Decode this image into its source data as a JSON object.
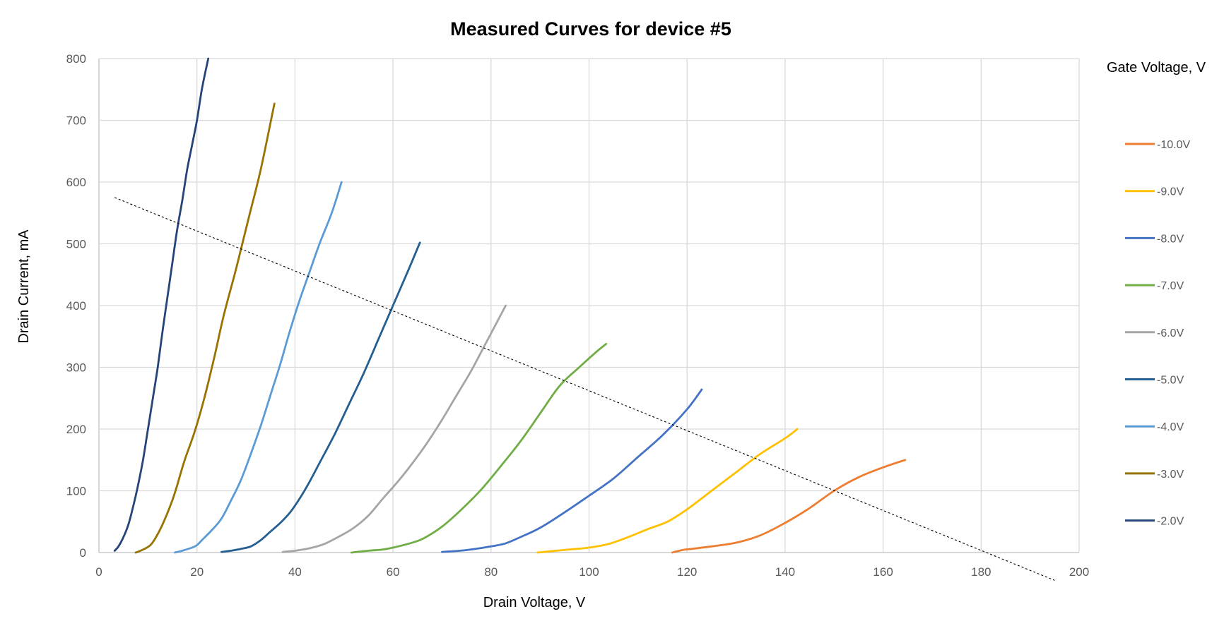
{
  "chart_data": {
    "type": "line",
    "title": "Measured Curves for device #5",
    "xlabel": "Drain Voltage, V",
    "ylabel": "Drain Current, mA",
    "xlim": [
      0,
      200
    ],
    "ylim": [
      0,
      800
    ],
    "xticks": [
      0,
      20,
      40,
      60,
      80,
      100,
      120,
      140,
      160,
      180,
      200
    ],
    "yticks": [
      0,
      100,
      200,
      300,
      400,
      500,
      600,
      700,
      800
    ],
    "grid": true,
    "legend_title": "Gate Voltage, V",
    "legend_position": "right",
    "series": [
      {
        "name": "-10.0V",
        "color": "#ed7d31",
        "points": [
          [
            117,
            0
          ],
          [
            119,
            4
          ],
          [
            121,
            6
          ],
          [
            125,
            10
          ],
          [
            130,
            16
          ],
          [
            135,
            28
          ],
          [
            140,
            48
          ],
          [
            145,
            72
          ],
          [
            150,
            100
          ],
          [
            155,
            122
          ],
          [
            160,
            138
          ],
          [
            164.5,
            150
          ]
        ]
      },
      {
        "name": "-9.0V",
        "color": "#ffc000",
        "points": [
          [
            89.5,
            0
          ],
          [
            92,
            2
          ],
          [
            96,
            5
          ],
          [
            100,
            8
          ],
          [
            104,
            14
          ],
          [
            108,
            25
          ],
          [
            112,
            38
          ],
          [
            116,
            50
          ],
          [
            120,
            70
          ],
          [
            125,
            100
          ],
          [
            130,
            130
          ],
          [
            135,
            160
          ],
          [
            140,
            185
          ],
          [
            142.5,
            200
          ]
        ]
      },
      {
        "name": "-8.0V",
        "color": "#4472c4",
        "points": [
          [
            70,
            1
          ],
          [
            75,
            4
          ],
          [
            80,
            10
          ],
          [
            83,
            15
          ],
          [
            86,
            25
          ],
          [
            90,
            40
          ],
          [
            95,
            65
          ],
          [
            100,
            92
          ],
          [
            105,
            120
          ],
          [
            110,
            155
          ],
          [
            115,
            190
          ],
          [
            120,
            232
          ],
          [
            123,
            264
          ]
        ]
      },
      {
        "name": "-7.0V",
        "color": "#70ad47",
        "points": [
          [
            51.5,
            0
          ],
          [
            55,
            3
          ],
          [
            58,
            5
          ],
          [
            60,
            8
          ],
          [
            63,
            14
          ],
          [
            66,
            22
          ],
          [
            70,
            42
          ],
          [
            74,
            70
          ],
          [
            78,
            102
          ],
          [
            82,
            140
          ],
          [
            86,
            180
          ],
          [
            90,
            225
          ],
          [
            94,
            270
          ],
          [
            98,
            300
          ],
          [
            101.5,
            325
          ],
          [
            103.5,
            338
          ]
        ]
      },
      {
        "name": "-6.0V",
        "color": "#a5a5a5",
        "points": [
          [
            37.5,
            1
          ],
          [
            40,
            3
          ],
          [
            43,
            7
          ],
          [
            46,
            14
          ],
          [
            49,
            26
          ],
          [
            52,
            40
          ],
          [
            55,
            60
          ],
          [
            58,
            88
          ],
          [
            61,
            115
          ],
          [
            64,
            145
          ],
          [
            67,
            178
          ],
          [
            70,
            215
          ],
          [
            73,
            255
          ],
          [
            76,
            295
          ],
          [
            79,
            340
          ],
          [
            83,
            400
          ]
        ]
      },
      {
        "name": "-5.0V",
        "color": "#255e91",
        "points": [
          [
            25,
            1
          ],
          [
            27,
            3
          ],
          [
            29,
            6
          ],
          [
            31,
            10
          ],
          [
            33,
            20
          ],
          [
            35,
            34
          ],
          [
            37,
            48
          ],
          [
            39,
            65
          ],
          [
            41,
            88
          ],
          [
            43,
            115
          ],
          [
            45,
            145
          ],
          [
            48,
            190
          ],
          [
            51,
            240
          ],
          [
            54,
            290
          ],
          [
            57,
            345
          ],
          [
            60,
            400
          ],
          [
            63,
            455
          ],
          [
            65.5,
            502
          ]
        ]
      },
      {
        "name": "-4.0V",
        "color": "#5b9bd5",
        "points": [
          [
            15.5,
            0
          ],
          [
            17,
            3
          ],
          [
            19,
            8
          ],
          [
            20,
            12
          ],
          [
            21,
            20
          ],
          [
            23,
            36
          ],
          [
            25,
            55
          ],
          [
            27,
            85
          ],
          [
            29,
            118
          ],
          [
            31,
            160
          ],
          [
            33,
            205
          ],
          [
            35,
            255
          ],
          [
            37,
            305
          ],
          [
            39,
            360
          ],
          [
            41,
            410
          ],
          [
            43,
            455
          ],
          [
            45,
            500
          ],
          [
            47.5,
            550
          ],
          [
            49.5,
            600
          ]
        ]
      },
      {
        "name": "-3.0V",
        "color": "#997300",
        "points": [
          [
            7.5,
            0
          ],
          [
            8.5,
            3
          ],
          [
            10.5,
            12
          ],
          [
            12,
            30
          ],
          [
            13.5,
            55
          ],
          [
            15,
            85
          ],
          [
            16,
            110
          ],
          [
            17.5,
            150
          ],
          [
            19.5,
            195
          ],
          [
            21.5,
            250
          ],
          [
            23.5,
            315
          ],
          [
            25.5,
            385
          ],
          [
            28,
            460
          ],
          [
            30.5,
            540
          ],
          [
            33,
            620
          ],
          [
            35.8,
            727
          ]
        ]
      },
      {
        "name": "-2.0V",
        "color": "#264478",
        "points": [
          [
            3.2,
            3
          ],
          [
            4,
            10
          ],
          [
            5,
            25
          ],
          [
            6,
            45
          ],
          [
            7,
            75
          ],
          [
            8,
            110
          ],
          [
            9,
            150
          ],
          [
            10,
            200
          ],
          [
            11,
            250
          ],
          [
            12,
            300
          ],
          [
            13,
            360
          ],
          [
            14,
            415
          ],
          [
            15,
            470
          ],
          [
            16,
            525
          ],
          [
            17,
            570
          ],
          [
            18,
            620
          ],
          [
            19,
            660
          ],
          [
            20,
            700
          ],
          [
            21,
            750
          ],
          [
            22.3,
            800
          ]
        ]
      }
    ],
    "load_line": {
      "points": [
        [
          3.2,
          575
        ],
        [
          195,
          -45
        ]
      ],
      "color": "#000000",
      "style": "dashed"
    }
  }
}
